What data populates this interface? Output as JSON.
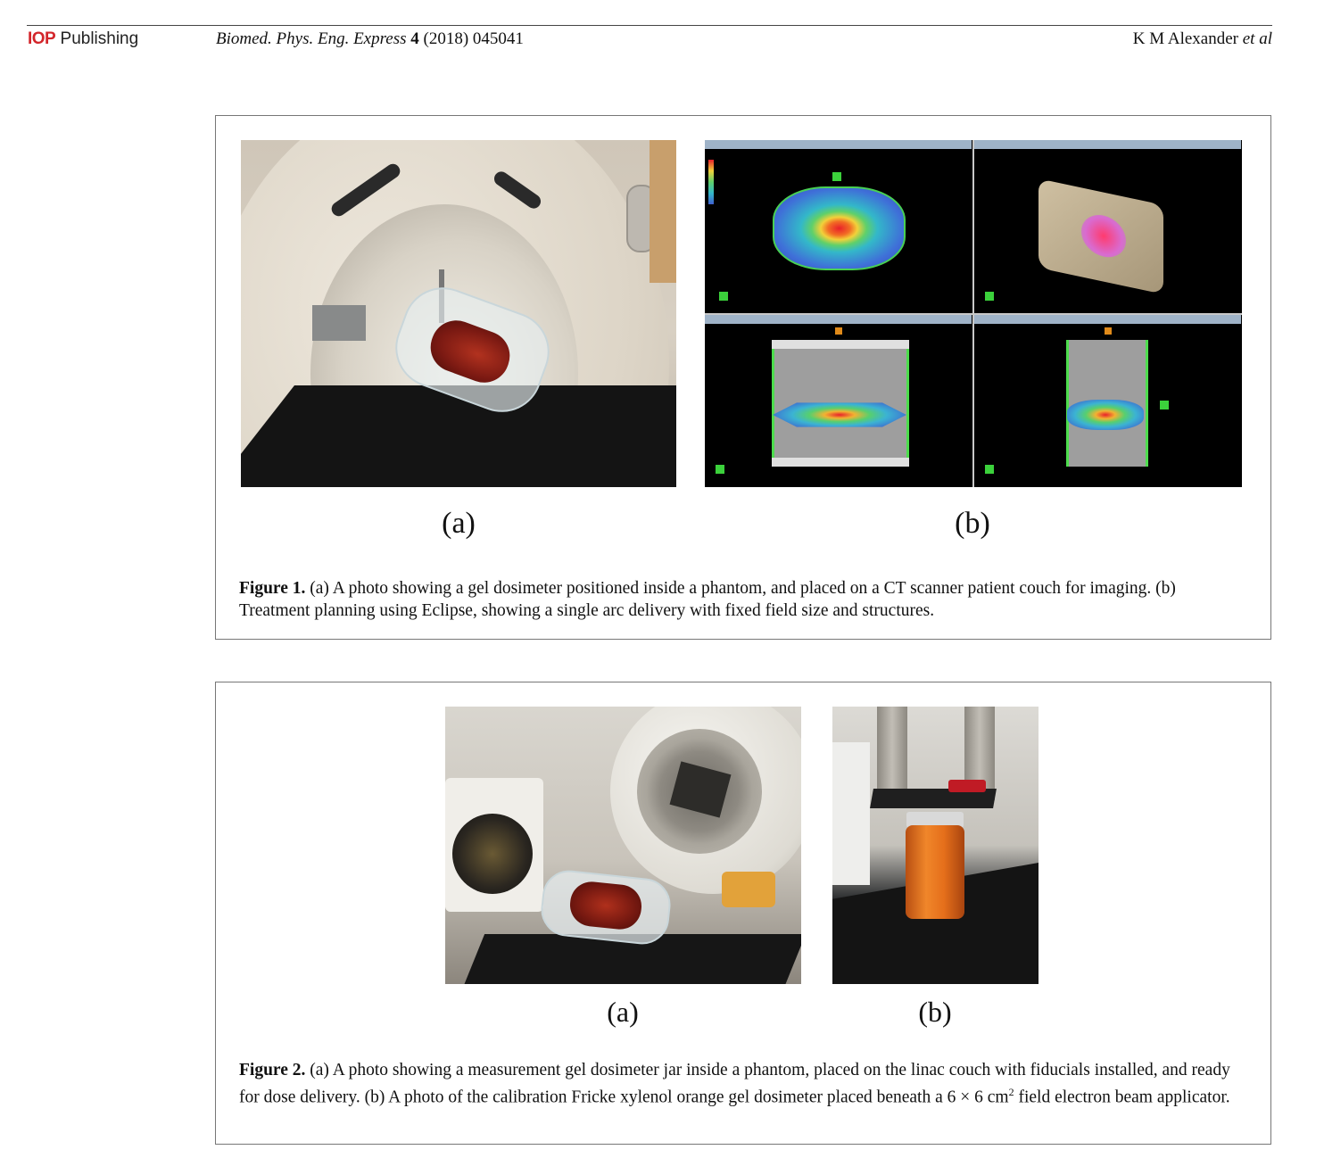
{
  "header": {
    "publisher_mark": "IOP",
    "publisher_name": "Publishing",
    "journal_name": "Biomed. Phys. Eng. Express",
    "volume": "4",
    "year_article": "(2018) 045041",
    "authors": "K M Alexander",
    "et_al": "et al"
  },
  "figure1": {
    "sublabel_a": "(a)",
    "sublabel_b": "(b)",
    "caption_label": "Figure 1.",
    "caption_text": "(a) A photo showing a gel dosimeter positioned inside a phantom, and placed on a CT scanner patient couch for imaging. (b) Treatment planning using Eclipse, showing a single arc delivery with fixed field size and structures."
  },
  "figure2": {
    "sublabel_a": "(a)",
    "sublabel_b": "(b)",
    "caption_label": "Figure 2.",
    "caption_text_1": "(a) A photo showing a measurement gel dosimeter jar inside a phantom, placed on the linac couch with fiducials installed, and ready for dose delivery. (b) A photo of the calibration Fricke xylenol orange gel dosimeter placed beneath a 6 × 6 cm",
    "caption_sup": "2",
    "caption_text_2": " field electron beam applicator."
  },
  "colors": {
    "iop_red": "#d3262b",
    "frame_border": "#777777"
  }
}
